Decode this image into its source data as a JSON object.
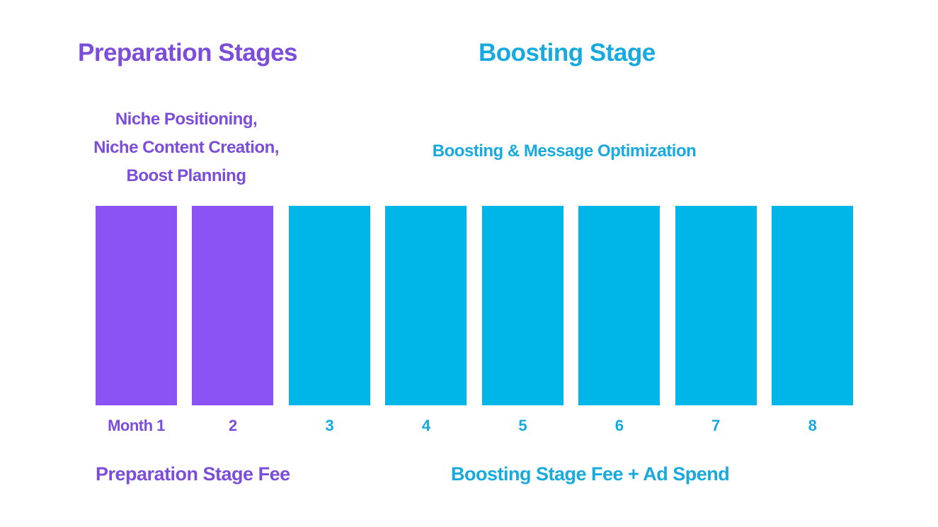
{
  "colors": {
    "purple_text": "#7c4dd8",
    "purple_bar": "#8b52f4",
    "cyan_text": "#18a9de",
    "cyan_bar": "#00b6e9"
  },
  "sections": {
    "preparation": {
      "title": "Preparation Stages",
      "subtitle_lines": [
        "Niche Positioning,",
        "Niche Content Creation,",
        "Boost Planning"
      ],
      "caption": "Preparation Stage Fee"
    },
    "boosting": {
      "title": "Boosting Stage",
      "subtitle": "Boosting & Message Optimization",
      "caption": "Boosting Stage Fee + Ad Spend"
    }
  },
  "chart_data": {
    "type": "bar",
    "title": "Preparation Stages / Boosting Stage timeline",
    "categories": [
      "Month 1",
      "2",
      "3",
      "4",
      "5",
      "6",
      "7",
      "8"
    ],
    "values": [
      1,
      1,
      1,
      1,
      1,
      1,
      1,
      1
    ],
    "groups": [
      "preparation",
      "preparation",
      "boosting",
      "boosting",
      "boosting",
      "boosting",
      "boosting",
      "boosting"
    ],
    "series": [
      {
        "name": "Preparation Stage",
        "months": [
          "Month 1",
          "2"
        ],
        "color": "#8b52f4"
      },
      {
        "name": "Boosting Stage",
        "months": [
          "3",
          "4",
          "5",
          "6",
          "7",
          "8"
        ],
        "color": "#00b6e9"
      }
    ],
    "xlabel": "",
    "ylabel": "",
    "ylim": [
      0,
      1
    ],
    "grid": false,
    "legend": false,
    "notes": "All bars equal height; schematic timeline, no numeric y-axis shown"
  }
}
